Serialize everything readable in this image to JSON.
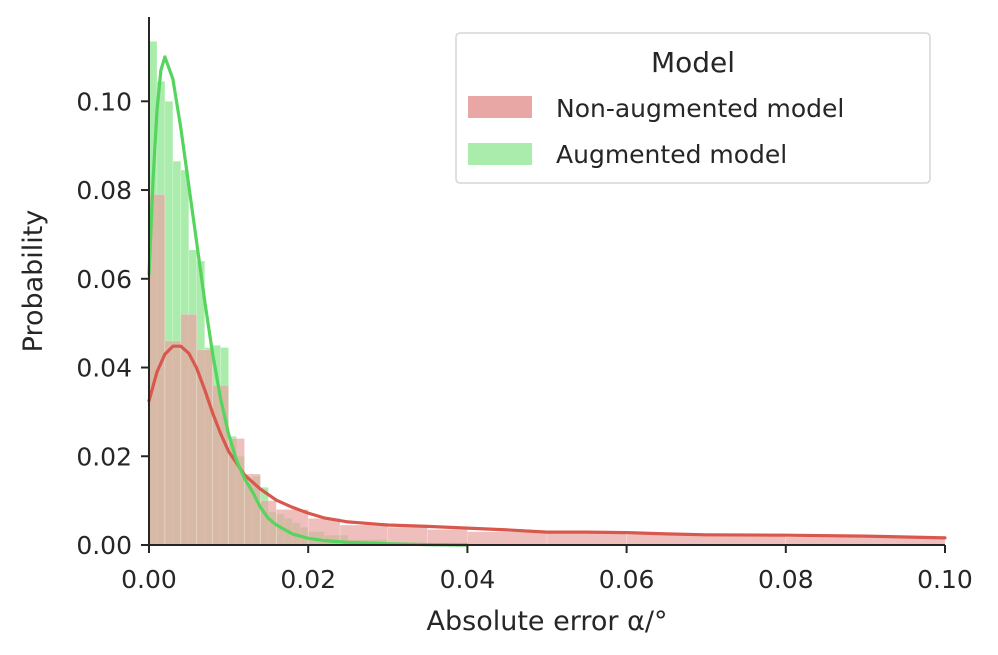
{
  "chart_data": {
    "type": "histogram",
    "xlabel": "Absolute error α/°",
    "ylabel": "Probability",
    "xlim": [
      0.0,
      0.1
    ],
    "ylim": [
      0.0,
      0.119
    ],
    "x_ticks": [
      0.0,
      0.02,
      0.04,
      0.06,
      0.08,
      0.1
    ],
    "x_tick_labels": [
      "0.00",
      "0.02",
      "0.04",
      "0.06",
      "0.08",
      "0.10"
    ],
    "y_ticks": [
      0.0,
      0.02,
      0.04,
      0.06,
      0.08,
      0.1
    ],
    "y_tick_labels": [
      "0.00",
      "0.02",
      "0.04",
      "0.06",
      "0.08",
      "0.10"
    ],
    "grid": false,
    "legend": {
      "title": "Model",
      "position": "top-right",
      "entries": [
        "Non-augmented model",
        "Augmented model"
      ]
    },
    "series": [
      {
        "name": "Non-augmented model",
        "color": "#e8a6a4",
        "kde_color": "#d9584e",
        "bin_edges": [
          0.0,
          0.002,
          0.004,
          0.006,
          0.008,
          0.01,
          0.012,
          0.014,
          0.016,
          0.02,
          0.024,
          0.03,
          0.035,
          0.04,
          0.05,
          0.06,
          0.08,
          0.1
        ],
        "values": [
          0.079,
          0.046,
          0.052,
          0.044,
          0.036,
          0.024,
          0.016,
          0.01,
          0.008,
          0.006,
          0.0045,
          0.004,
          0.0035,
          0.003,
          0.0028,
          0.0024,
          0.0018
        ],
        "kde_x": [
          0.0,
          0.001,
          0.002,
          0.003,
          0.004,
          0.005,
          0.006,
          0.007,
          0.008,
          0.009,
          0.01,
          0.012,
          0.014,
          0.016,
          0.018,
          0.02,
          0.022,
          0.025,
          0.03,
          0.035,
          0.04,
          0.045,
          0.05,
          0.055,
          0.06,
          0.065,
          0.07,
          0.08,
          0.09,
          0.1
        ],
        "kde_y": [
          0.0325,
          0.039,
          0.043,
          0.0448,
          0.0448,
          0.0432,
          0.0398,
          0.035,
          0.0297,
          0.0251,
          0.0211,
          0.0158,
          0.0126,
          0.0101,
          0.0085,
          0.0072,
          0.0061,
          0.0052,
          0.0045,
          0.0042,
          0.0038,
          0.0034,
          0.0029,
          0.0029,
          0.0028,
          0.0025,
          0.0023,
          0.0022,
          0.002,
          0.0016
        ]
      },
      {
        "name": "Augmented model",
        "color": "#a9ecab",
        "kde_color": "#55d45e",
        "bin_edges": [
          0.0,
          0.001,
          0.002,
          0.003,
          0.004,
          0.005,
          0.006,
          0.007,
          0.008,
          0.009,
          0.01,
          0.011,
          0.012,
          0.013,
          0.014,
          0.015,
          0.016,
          0.017,
          0.018,
          0.019,
          0.02,
          0.022,
          0.025,
          0.03,
          0.04
        ],
        "values": [
          0.1135,
          0.1045,
          0.1,
          0.0865,
          0.0845,
          0.0665,
          0.064,
          0.0445,
          0.045,
          0.0445,
          0.0245,
          0.02,
          0.014,
          0.0155,
          0.013,
          0.0075,
          0.007,
          0.006,
          0.005,
          0.004,
          0.003,
          0.0022,
          0.0012,
          0.0005
        ],
        "kde_x": [
          0.0,
          0.0005,
          0.001,
          0.0015,
          0.002,
          0.003,
          0.004,
          0.005,
          0.006,
          0.007,
          0.008,
          0.009,
          0.01,
          0.011,
          0.012,
          0.013,
          0.014,
          0.015,
          0.016,
          0.018,
          0.02,
          0.022,
          0.025,
          0.03,
          0.035,
          0.04
        ],
        "kde_y": [
          0.061,
          0.082,
          0.098,
          0.107,
          0.11,
          0.105,
          0.094,
          0.081,
          0.068,
          0.055,
          0.043,
          0.033,
          0.025,
          0.019,
          0.015,
          0.012,
          0.0085,
          0.006,
          0.0045,
          0.0025,
          0.0015,
          0.001,
          0.0006,
          0.0003,
          0.0001,
          0.0
        ]
      }
    ],
    "overlap_color": "#c4a886"
  }
}
